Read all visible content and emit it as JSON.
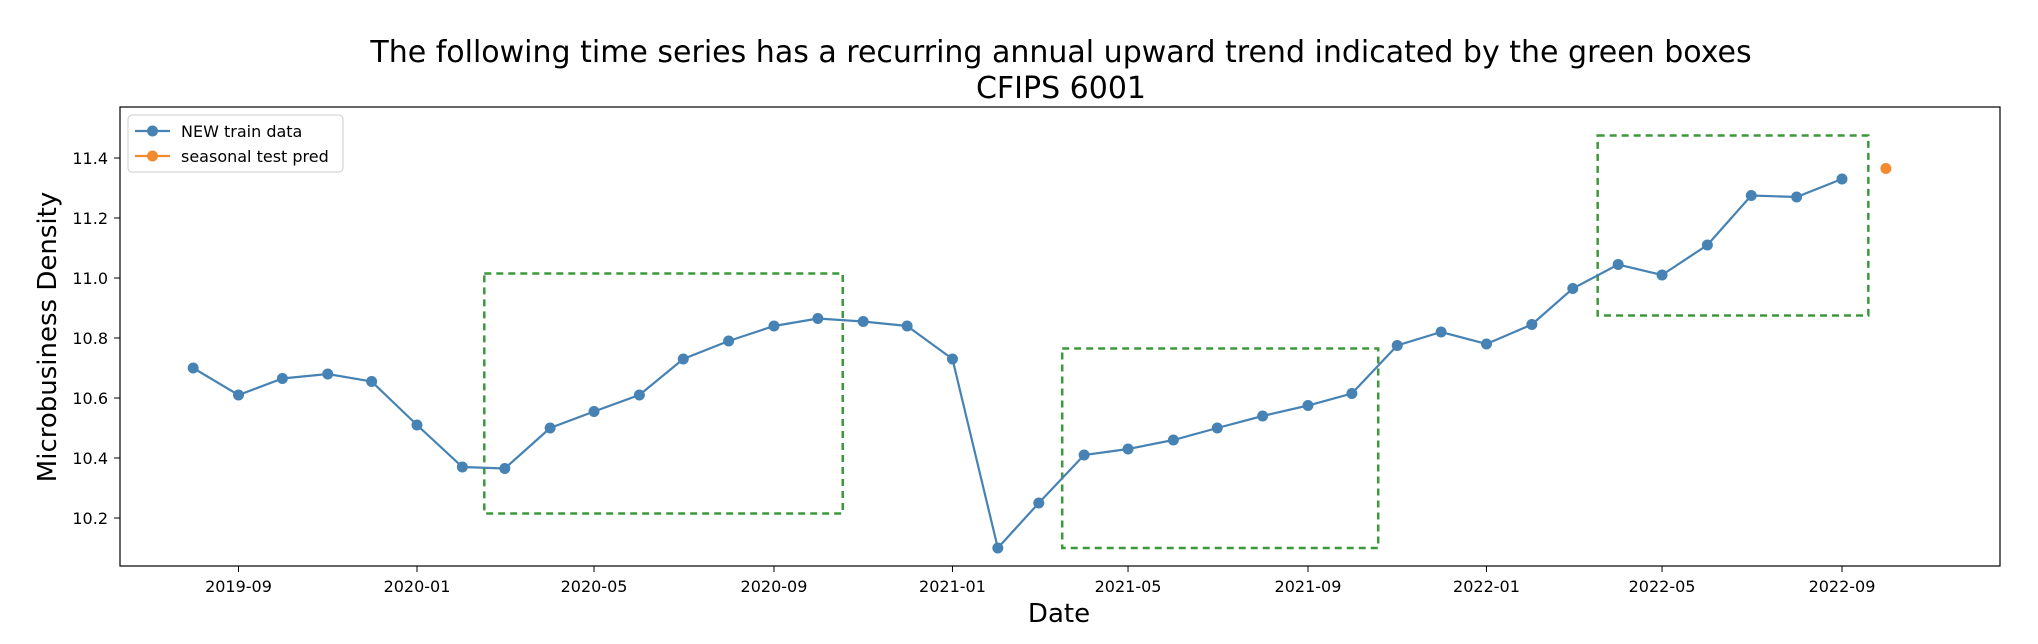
{
  "chart_data": {
    "type": "line",
    "title": "The following time series has a recurring annual upward trend indicated by the green boxes",
    "subtitle": "CFIPS 6001",
    "xlabel": "Date",
    "ylabel": "Microbusiness Density",
    "xlim": [
      "2019-06-12",
      "2022-12-18"
    ],
    "ylim": [
      10.04,
      11.57
    ],
    "x_ticks": [
      "2019-09",
      "2020-01",
      "2020-05",
      "2020-09",
      "2021-01",
      "2021-05",
      "2021-09",
      "2022-01",
      "2022-05",
      "2022-09"
    ],
    "y_ticks": [
      10.2,
      10.4,
      10.6,
      10.8,
      11.0,
      11.2,
      11.4
    ],
    "legend_position": "top-left",
    "grid": false,
    "series": [
      {
        "name": "NEW train data",
        "color": "#4682b4",
        "marker": "circle",
        "points": [
          {
            "x": "2019-08-01",
            "y": 10.7
          },
          {
            "x": "2019-09-01",
            "y": 10.61
          },
          {
            "x": "2019-10-01",
            "y": 10.665
          },
          {
            "x": "2019-11-01",
            "y": 10.68
          },
          {
            "x": "2019-12-01",
            "y": 10.655
          },
          {
            "x": "2020-01-01",
            "y": 10.51
          },
          {
            "x": "2020-02-01",
            "y": 10.37
          },
          {
            "x": "2020-03-01",
            "y": 10.365
          },
          {
            "x": "2020-04-01",
            "y": 10.5
          },
          {
            "x": "2020-05-01",
            "y": 10.555
          },
          {
            "x": "2020-06-01",
            "y": 10.61
          },
          {
            "x": "2020-07-01",
            "y": 10.73
          },
          {
            "x": "2020-08-01",
            "y": 10.79
          },
          {
            "x": "2020-09-01",
            "y": 10.84
          },
          {
            "x": "2020-10-01",
            "y": 10.865
          },
          {
            "x": "2020-11-01",
            "y": 10.855
          },
          {
            "x": "2020-12-01",
            "y": 10.84
          },
          {
            "x": "2021-01-01",
            "y": 10.73
          },
          {
            "x": "2021-02-01",
            "y": 10.1
          },
          {
            "x": "2021-03-01",
            "y": 10.25
          },
          {
            "x": "2021-04-01",
            "y": 10.41
          },
          {
            "x": "2021-05-01",
            "y": 10.43
          },
          {
            "x": "2021-06-01",
            "y": 10.46
          },
          {
            "x": "2021-07-01",
            "y": 10.5
          },
          {
            "x": "2021-08-01",
            "y": 10.54
          },
          {
            "x": "2021-09-01",
            "y": 10.575
          },
          {
            "x": "2021-10-01",
            "y": 10.615
          },
          {
            "x": "2021-11-01",
            "y": 10.775
          },
          {
            "x": "2021-12-01",
            "y": 10.82
          },
          {
            "x": "2022-01-01",
            "y": 10.78
          },
          {
            "x": "2022-02-01",
            "y": 10.845
          },
          {
            "x": "2022-03-01",
            "y": 10.965
          },
          {
            "x": "2022-04-01",
            "y": 11.045
          },
          {
            "x": "2022-05-01",
            "y": 11.01
          },
          {
            "x": "2022-06-01",
            "y": 11.11
          },
          {
            "x": "2022-07-01",
            "y": 11.275
          },
          {
            "x": "2022-08-01",
            "y": 11.27
          },
          {
            "x": "2022-09-01",
            "y": 11.33
          }
        ]
      },
      {
        "name": "seasonal test pred",
        "color": "#f28a30",
        "marker": "circle",
        "points": [
          {
            "x": "2022-10-01",
            "y": 11.365
          }
        ]
      }
    ],
    "annotations": {
      "box_color": "#3a9a3a",
      "box_style": "dashed",
      "boxes": [
        {
          "x0": "2020-02-16",
          "x1": "2020-10-18",
          "y0": 10.215,
          "y1": 11.015
        },
        {
          "x0": "2021-03-17",
          "x1": "2021-10-19",
          "y0": 10.1,
          "y1": 10.765
        },
        {
          "x0": "2022-03-18",
          "x1": "2022-09-19",
          "y0": 10.875,
          "y1": 11.475
        }
      ]
    }
  }
}
